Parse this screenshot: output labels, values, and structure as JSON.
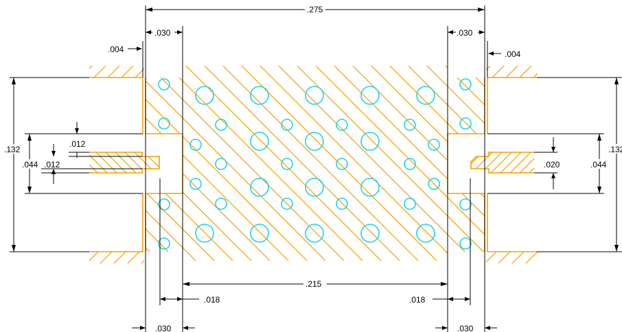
{
  "drawing": {
    "colors": {
      "part_outline": "#f5a000",
      "hatching": "#f5a000",
      "holes": "#19d6e6",
      "dimensions": "#000000",
      "background": "#ffffff"
    },
    "dimensions": {
      "overall_width": ".275",
      "left_top_offset": ".030",
      "right_top_offset": ".030",
      "left_gap": ".004",
      "right_gap": ".004",
      "left_height": ".132",
      "right_height": ".132",
      "left_inner_height": ".044",
      "right_inner_height": ".044",
      "left_slot_upper": ".012",
      "left_slot_lower": ".012",
      "right_slot": ".020",
      "center_width": ".215",
      "left_bottom_inner": ".018",
      "right_bottom_inner": ".018",
      "left_bottom_outer": ".030",
      "right_bottom_outer": ".030"
    }
  }
}
